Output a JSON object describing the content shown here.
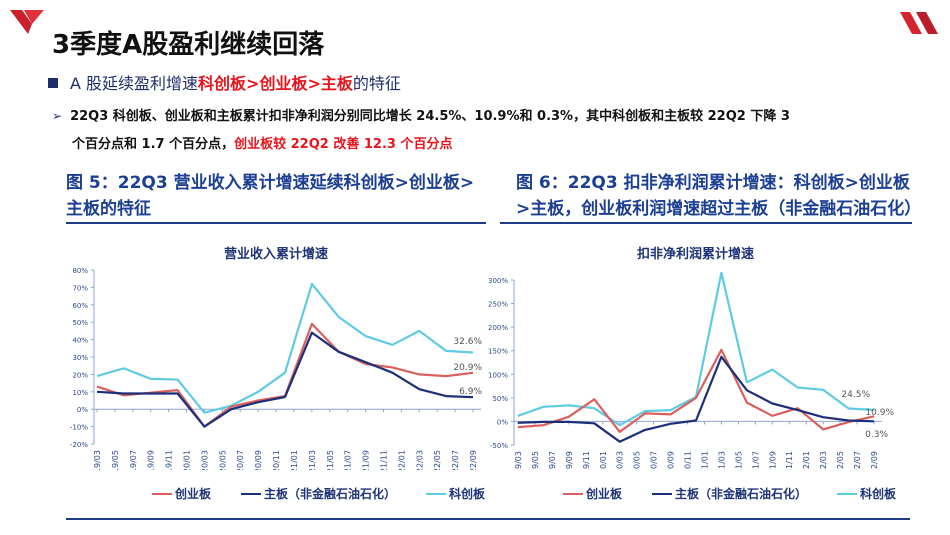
{
  "header": {
    "title": "3季度A股盈利继续回落"
  },
  "bullet": {
    "prefix": "A 股延续盈利增速",
    "highlight": "科创板>创业板>主板",
    "suffix": "的特征"
  },
  "paragraph": {
    "line1": "22Q3 科创板、创业板和主板累计扣非净利润分别同比增长 24.5%、10.9%和 0.3%，其中科创板和主板较 22Q2 下降 3",
    "line2_plain": "个百分点和 1.7 个百分点，",
    "line2_red": "创业板较 22Q2 改善 12.3 个百分点"
  },
  "figures": {
    "fig5_title": "图 5：22Q3 营业收入累计增速延续科创板>创业板>主板的特征",
    "fig6_title": "图 6：22Q3 扣非净利润累计增速：科创板>创业板>主板，创业板利润增速超过主板（非金融石油石化）"
  },
  "legend": {
    "series1": "创业板",
    "series2": "主板（非金融石油石化）",
    "series3": "科创板"
  },
  "colors": {
    "chuangye": "#d9605d",
    "zhuban": "#1b2f7a",
    "kechuang": "#5fcbe3",
    "accent_red": "#e8141b",
    "heading_blue": "#1c3f94"
  },
  "chart_data": [
    {
      "type": "line",
      "title": "营业收入累计增速",
      "xlabel": "",
      "ylabel": "",
      "ylim": [
        -20,
        80
      ],
      "yticks": [
        "80%",
        "70%",
        "60%",
        "50%",
        "40%",
        "30%",
        "20%",
        "10%",
        "0%",
        "-10%",
        "-20%"
      ],
      "x_tick_labels": [
        "19/03",
        "19/05",
        "19/07",
        "19/09",
        "19/11",
        "20/01",
        "20/03",
        "20/05",
        "20/07",
        "20/09",
        "20/11",
        "21/01",
        "21/03",
        "21/05",
        "21/07",
        "21/09",
        "21/11",
        "22/01",
        "22/03",
        "22/05",
        "22/07",
        "22/09"
      ],
      "x": [
        "19Q1",
        "19Q2",
        "19Q3",
        "19Q4",
        "20Q1",
        "20Q2",
        "20Q3",
        "20Q4",
        "21Q1",
        "21Q2",
        "21Q3",
        "21Q4",
        "22Q1",
        "22Q2",
        "22Q3"
      ],
      "series": [
        {
          "name": "创业板",
          "values": [
            13,
            8,
            9.5,
            11,
            -10,
            1.5,
            5,
            7.5,
            49,
            33,
            26,
            24,
            20,
            19,
            20.9
          ]
        },
        {
          "name": "主板（非金融石油石化）",
          "values": [
            10,
            9,
            9,
            9,
            -10,
            0,
            4,
            7,
            44,
            33,
            27,
            21,
            11.5,
            7.5,
            6.9
          ]
        },
        {
          "name": "科创板",
          "values": [
            19,
            23.5,
            17.5,
            17,
            -2,
            2,
            10,
            21,
            72,
            53,
            42,
            37,
            45,
            33.5,
            32.6
          ]
        }
      ],
      "annotations": [
        "32.6%",
        "20.9%",
        "6.9%"
      ],
      "grid": false,
      "legend_position": "bottom"
    },
    {
      "type": "line",
      "title": "扣非净利润累计增速",
      "xlabel": "",
      "ylabel": "",
      "ylim": [
        -50,
        300
      ],
      "yticks": [
        "300%",
        "250%",
        "200%",
        "150%",
        "100%",
        "50%",
        "0%",
        "-50%"
      ],
      "x_tick_labels": [
        "19/03",
        "19/05",
        "19/07",
        "19/09",
        "19/11",
        "20/01",
        "20/03",
        "20/05",
        "20/07",
        "20/09",
        "20/11",
        "21/01",
        "21/03",
        "21/05",
        "21/07",
        "21/09",
        "21/11",
        "22/01",
        "22/03",
        "22/05",
        "22/07",
        "22/09"
      ],
      "x": [
        "19Q1",
        "19Q2",
        "19Q3",
        "19Q4",
        "20Q1",
        "20Q2",
        "20Q3",
        "20Q4",
        "21Q1",
        "21Q2",
        "21Q3",
        "21Q4",
        "22Q1",
        "22Q2",
        "22Q3"
      ],
      "series": [
        {
          "name": "创业板",
          "values": [
            -12,
            -8,
            10,
            47,
            -22,
            17,
            15,
            50,
            152,
            40,
            12,
            28,
            -17,
            -1.4,
            10.9
          ]
        },
        {
          "name": "主板（非金融石油石化）",
          "values": [
            -3,
            -1,
            -1,
            -4,
            -43,
            -18,
            -5,
            2,
            137,
            66,
            38,
            24,
            9,
            2,
            0.3
          ]
        },
        {
          "name": "科创板",
          "values": [
            12,
            31,
            34,
            28,
            -8,
            22,
            24,
            52,
            315,
            83,
            110,
            72,
            67,
            27.5,
            24.5
          ]
        }
      ],
      "annotations": [
        "24.5%",
        "10.9%",
        "0.3%"
      ],
      "grid": false,
      "legend_position": "bottom"
    }
  ]
}
